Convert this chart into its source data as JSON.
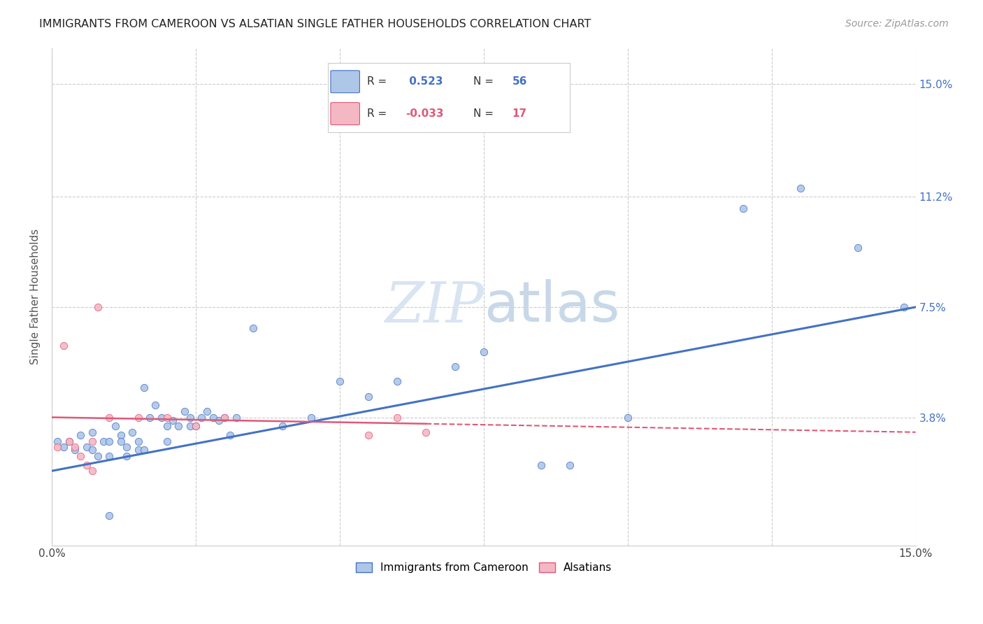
{
  "title": "IMMIGRANTS FROM CAMEROON VS ALSATIAN SINGLE FATHER HOUSEHOLDS CORRELATION CHART",
  "source": "Source: ZipAtlas.com",
  "ylabel": "Single Father Households",
  "y_tick_labels_right": [
    "3.8%",
    "7.5%",
    "11.2%",
    "15.0%"
  ],
  "y_tick_values": [
    0.038,
    0.075,
    0.112,
    0.15
  ],
  "xlim": [
    0.0,
    0.15
  ],
  "ylim": [
    -0.005,
    0.162
  ],
  "legend_label1": "Immigrants from Cameroon",
  "legend_label2": "Alsatians",
  "color_blue": "#aec6e8",
  "color_pink": "#f4b8c4",
  "line_blue": "#4472c4",
  "line_pink": "#e05878",
  "title_color": "#222222",
  "source_color": "#999999",
  "watermark_color": "#d8e4f2",
  "axis_label_color": "#4472c4",
  "grid_color": "#cccccc",
  "background_color": "#ffffff",
  "blue_dots": [
    [
      0.001,
      0.03
    ],
    [
      0.002,
      0.028
    ],
    [
      0.003,
      0.03
    ],
    [
      0.004,
      0.027
    ],
    [
      0.005,
      0.032
    ],
    [
      0.006,
      0.028
    ],
    [
      0.007,
      0.027
    ],
    [
      0.007,
      0.033
    ],
    [
      0.008,
      0.025
    ],
    [
      0.009,
      0.03
    ],
    [
      0.01,
      0.03
    ],
    [
      0.01,
      0.025
    ],
    [
      0.011,
      0.035
    ],
    [
      0.012,
      0.032
    ],
    [
      0.012,
      0.03
    ],
    [
      0.013,
      0.028
    ],
    [
      0.013,
      0.025
    ],
    [
      0.014,
      0.033
    ],
    [
      0.015,
      0.03
    ],
    [
      0.015,
      0.027
    ],
    [
      0.016,
      0.027
    ],
    [
      0.016,
      0.048
    ],
    [
      0.017,
      0.038
    ],
    [
      0.018,
      0.042
    ],
    [
      0.019,
      0.038
    ],
    [
      0.02,
      0.035
    ],
    [
      0.02,
      0.03
    ],
    [
      0.021,
      0.037
    ],
    [
      0.022,
      0.035
    ],
    [
      0.023,
      0.04
    ],
    [
      0.024,
      0.038
    ],
    [
      0.024,
      0.035
    ],
    [
      0.025,
      0.035
    ],
    [
      0.026,
      0.038
    ],
    [
      0.027,
      0.04
    ],
    [
      0.028,
      0.038
    ],
    [
      0.029,
      0.037
    ],
    [
      0.03,
      0.038
    ],
    [
      0.031,
      0.032
    ],
    [
      0.032,
      0.038
    ],
    [
      0.035,
      0.068
    ],
    [
      0.04,
      0.035
    ],
    [
      0.045,
      0.038
    ],
    [
      0.05,
      0.05
    ],
    [
      0.055,
      0.045
    ],
    [
      0.06,
      0.05
    ],
    [
      0.07,
      0.055
    ],
    [
      0.075,
      0.06
    ],
    [
      0.085,
      0.022
    ],
    [
      0.09,
      0.022
    ],
    [
      0.1,
      0.038
    ],
    [
      0.12,
      0.108
    ],
    [
      0.13,
      0.115
    ],
    [
      0.14,
      0.095
    ],
    [
      0.148,
      0.075
    ],
    [
      0.01,
      0.005
    ]
  ],
  "pink_dots": [
    [
      0.001,
      0.028
    ],
    [
      0.002,
      0.062
    ],
    [
      0.003,
      0.03
    ],
    [
      0.004,
      0.028
    ],
    [
      0.005,
      0.025
    ],
    [
      0.006,
      0.022
    ],
    [
      0.007,
      0.03
    ],
    [
      0.007,
      0.02
    ],
    [
      0.008,
      0.075
    ],
    [
      0.01,
      0.038
    ],
    [
      0.015,
      0.038
    ],
    [
      0.02,
      0.038
    ],
    [
      0.025,
      0.035
    ],
    [
      0.03,
      0.038
    ],
    [
      0.055,
      0.032
    ],
    [
      0.06,
      0.038
    ],
    [
      0.065,
      0.033
    ]
  ],
  "blue_line_x": [
    0.0,
    0.15
  ],
  "blue_line_y": [
    0.02,
    0.075
  ],
  "pink_line_x": [
    0.0,
    0.15
  ],
  "pink_line_y": [
    0.038,
    0.033
  ]
}
